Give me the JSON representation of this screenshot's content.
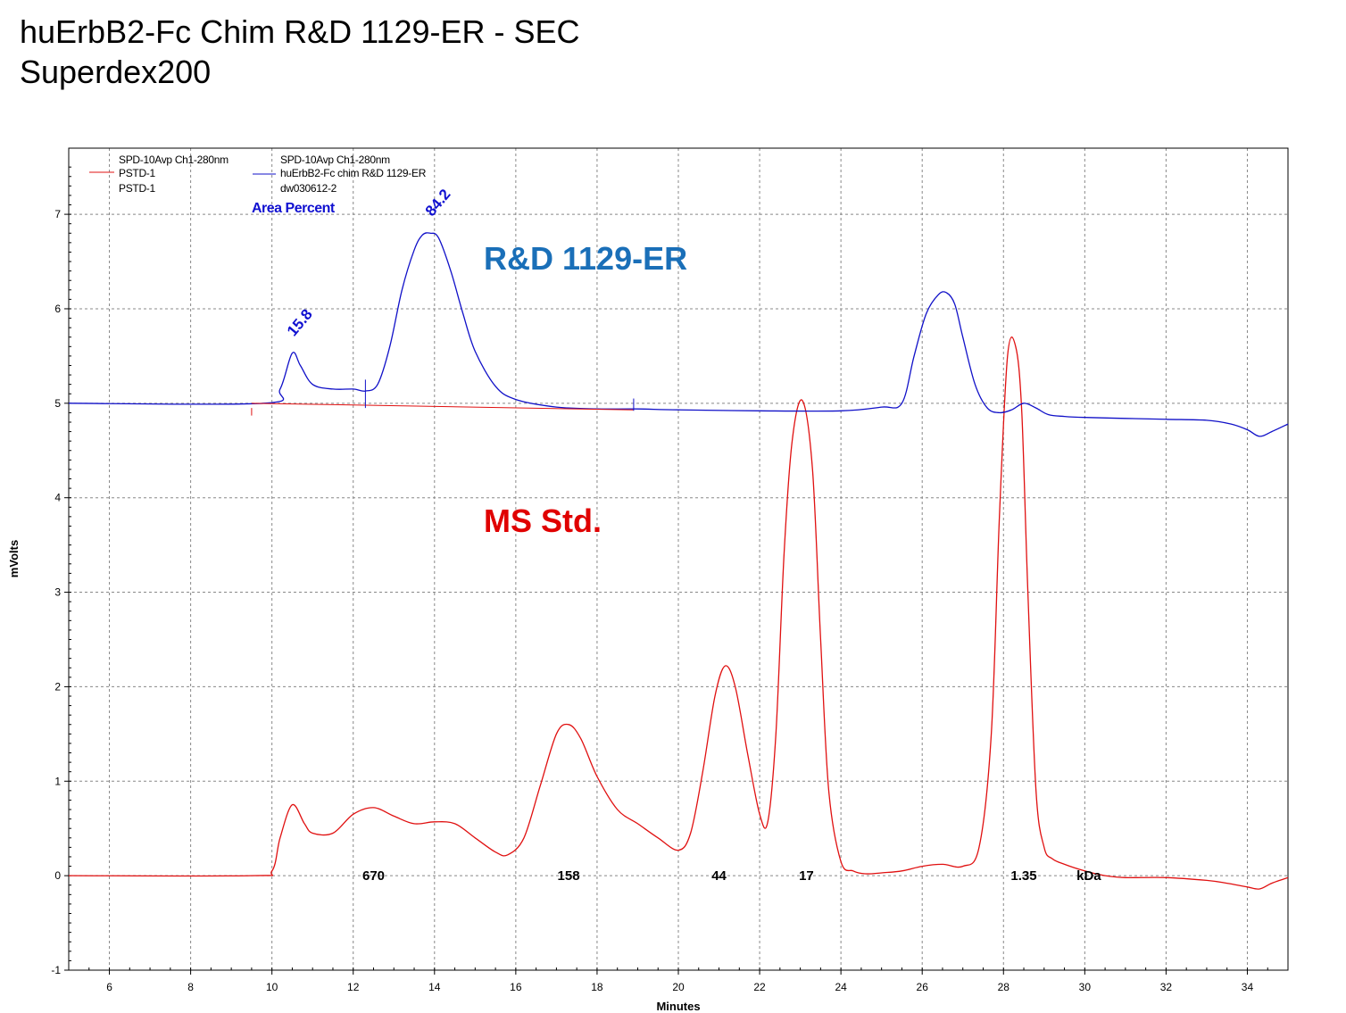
{
  "title": {
    "line1": "huErbB2-Fc Chim R&D 1129-ER - SEC",
    "line2": "Superdex200"
  },
  "colors": {
    "ms_std": "#e01010",
    "sample": "#1010c8",
    "big_label_blue": "#1a6fb8",
    "big_label_red": "#e00000",
    "grid": "#888888"
  },
  "chart_data": {
    "type": "line",
    "xlabel": "Minutes",
    "ylabel": "mVolts",
    "xlim": [
      5,
      35
    ],
    "ylim": [
      -1,
      7.7
    ],
    "xticks": [
      6,
      8,
      10,
      12,
      14,
      16,
      18,
      20,
      22,
      24,
      26,
      28,
      30,
      32,
      34
    ],
    "yticks": [
      -1,
      0,
      1,
      2,
      3,
      4,
      5,
      6,
      7
    ],
    "grid": true,
    "legend_position": "top-left",
    "legend": [
      {
        "detector": "SPD-10Avp Ch1-280nm",
        "name": "PSTD-1",
        "file": "PSTD-1",
        "color": "#e01010"
      },
      {
        "detector": "SPD-10Avp Ch1-280nm",
        "name": "huErbB2-Fc chim R&D 1129-ER",
        "file": "dw030612-2",
        "color": "#1010c8"
      }
    ],
    "series": [
      {
        "name": "PSTD-1",
        "label": "MS Std.",
        "color": "#e01010",
        "x": [
          5,
          9.5,
          10.0,
          10.2,
          10.5,
          10.8,
          11.0,
          11.5,
          12.0,
          12.5,
          13.0,
          13.5,
          14.0,
          14.5,
          15.0,
          15.5,
          15.8,
          16.2,
          16.6,
          17.0,
          17.3,
          17.6,
          18.0,
          18.5,
          19.0,
          19.5,
          20.0,
          20.3,
          20.6,
          20.9,
          21.15,
          21.4,
          21.7,
          22.0,
          22.2,
          22.4,
          22.6,
          22.8,
          23.05,
          23.3,
          23.5,
          23.7,
          24.0,
          24.3,
          24.6,
          25.0,
          25.5,
          26.0,
          26.5,
          27.0,
          27.4,
          27.7,
          27.9,
          28.1,
          28.3,
          28.45,
          28.6,
          28.8,
          29.0,
          29.2,
          29.5,
          30.0,
          30.5,
          31.0,
          32.0,
          33.0,
          33.5,
          34.0,
          34.3,
          34.6,
          35.0
        ],
        "y": [
          0,
          0,
          0.05,
          0.4,
          0.75,
          0.55,
          0.45,
          0.45,
          0.65,
          0.72,
          0.63,
          0.55,
          0.57,
          0.55,
          0.4,
          0.25,
          0.22,
          0.4,
          0.95,
          1.5,
          1.6,
          1.45,
          1.05,
          0.7,
          0.55,
          0.4,
          0.27,
          0.45,
          1.1,
          1.9,
          2.22,
          2.0,
          1.3,
          0.65,
          0.57,
          1.5,
          3.4,
          4.6,
          5.03,
          4.3,
          2.5,
          0.9,
          0.15,
          0.05,
          0.02,
          0.03,
          0.05,
          0.1,
          0.12,
          0.1,
          0.3,
          1.5,
          3.8,
          5.5,
          5.6,
          4.9,
          3.0,
          0.9,
          0.3,
          0.18,
          0.12,
          0.05,
          0.0,
          -0.02,
          -0.02,
          -0.05,
          -0.08,
          -0.12,
          -0.14,
          -0.08,
          -0.02
        ]
      },
      {
        "name": "huErbB2-Fc chim R&D 1129-ER",
        "label": "R&D 1129-ER",
        "color": "#1010c8",
        "x": [
          5,
          9.8,
          10.2,
          10.5,
          10.7,
          11.0,
          11.5,
          12.0,
          12.3,
          12.6,
          12.9,
          13.2,
          13.5,
          13.7,
          13.9,
          14.1,
          14.4,
          14.7,
          15.0,
          15.5,
          16.0,
          17.0,
          18.0,
          19.0,
          20.0,
          22.0,
          24.0,
          25.0,
          25.5,
          25.8,
          26.1,
          26.4,
          26.6,
          26.8,
          27.0,
          27.3,
          27.6,
          27.9,
          28.2,
          28.5,
          28.8,
          29.1,
          29.5,
          30.0,
          31.0,
          32.0,
          33.0,
          33.6,
          34.0,
          34.3,
          34.6,
          35.0
        ],
        "y": [
          5.0,
          5.0,
          5.15,
          5.53,
          5.4,
          5.2,
          5.15,
          5.15,
          5.13,
          5.2,
          5.6,
          6.2,
          6.62,
          6.78,
          6.8,
          6.75,
          6.4,
          5.95,
          5.55,
          5.18,
          5.04,
          4.96,
          4.94,
          4.94,
          4.93,
          4.92,
          4.92,
          4.96,
          5.0,
          5.5,
          5.95,
          6.15,
          6.17,
          6.05,
          5.7,
          5.2,
          4.95,
          4.9,
          4.93,
          5.0,
          4.95,
          4.88,
          4.86,
          4.85,
          4.84,
          4.83,
          4.82,
          4.78,
          4.72,
          4.65,
          4.7,
          4.78
        ]
      }
    ],
    "annotations": {
      "area_percent_title": "Area Percent",
      "peak_area_labels": [
        {
          "x": 10.5,
          "y": 5.53,
          "text": "15.8"
        },
        {
          "x": 13.9,
          "y": 6.8,
          "text": "84.2"
        }
      ],
      "kda_labels": [
        {
          "x": 12.5,
          "text": "670"
        },
        {
          "x": 17.3,
          "text": "158"
        },
        {
          "x": 21.0,
          "text": "44"
        },
        {
          "x": 23.15,
          "text": "17"
        },
        {
          "x": 28.5,
          "text": "1.35"
        },
        {
          "x": 30.1,
          "text": "kDa"
        }
      ],
      "series_labels": [
        {
          "text": "R&D 1129-ER",
          "series": "huErbB2-Fc chim R&D 1129-ER"
        },
        {
          "text": "MS Std.",
          "series": "PSTD-1"
        }
      ]
    }
  }
}
